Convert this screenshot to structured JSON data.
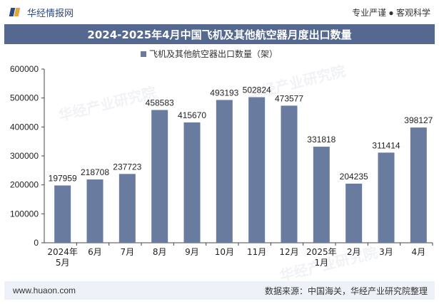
{
  "header": {
    "brand": "华经情报网",
    "tagline": "专业严谨 ● 客观科学"
  },
  "title": "2024-2025年4月中国飞机及其他航空器月度出口数量",
  "footer": {
    "website": "www.huaon.com",
    "source": "数据来源：中国海关，华经产业研究院整理"
  },
  "watermark": "华经产业研究院",
  "colors": {
    "bar": "#6a7ba0",
    "title_bg": "#55688f",
    "brand": "#2c4a80"
  },
  "chart_data": {
    "type": "bar",
    "legend": "飞机及其他航空器出口数量（架）",
    "categories": [
      "2024年5月",
      "6月",
      "7月",
      "8月",
      "9月",
      "10月",
      "11月",
      "12月",
      "2025年1月",
      "2月",
      "3月",
      "4月"
    ],
    "category_lines": [
      [
        "2024年",
        "5月"
      ],
      [
        "6月"
      ],
      [
        "7月"
      ],
      [
        "8月"
      ],
      [
        "9月"
      ],
      [
        "10月"
      ],
      [
        "11月"
      ],
      [
        "12月"
      ],
      [
        "2025年",
        "1月"
      ],
      [
        "2月"
      ],
      [
        "3月"
      ],
      [
        "4月"
      ]
    ],
    "values": [
      197959,
      218708,
      237723,
      458583,
      415670,
      493193,
      502824,
      473577,
      331818,
      204235,
      311414,
      398127
    ],
    "ylim": [
      0,
      600000
    ],
    "yticks": [
      0,
      100000,
      200000,
      300000,
      400000,
      500000,
      600000
    ]
  }
}
